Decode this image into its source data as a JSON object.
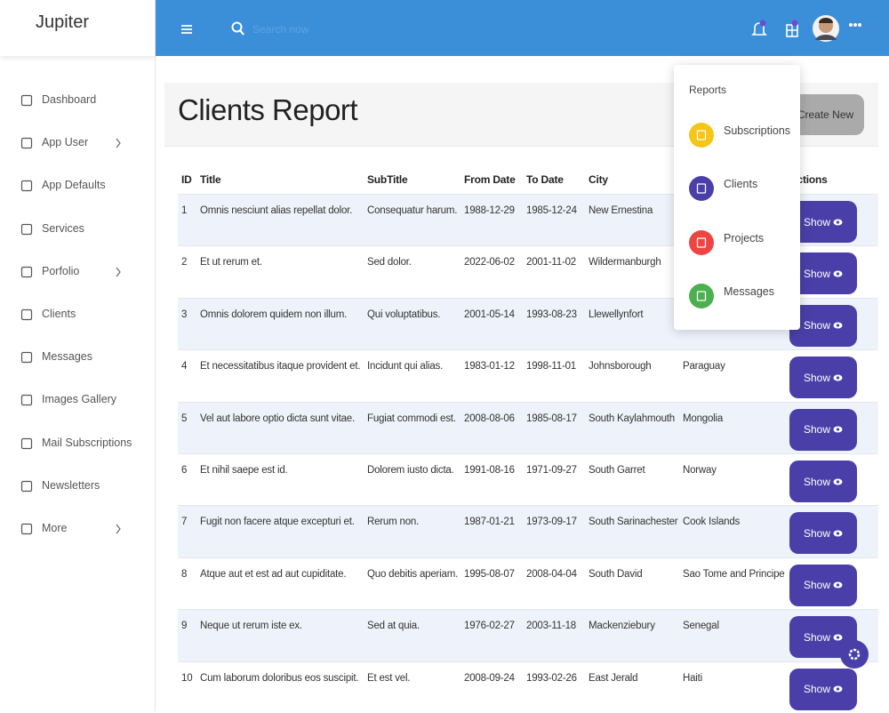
{
  "sidebar": {
    "brand": "Jupiter",
    "menu": [
      {
        "label": "Dashboard",
        "submenu": false
      },
      {
        "label": "App User",
        "submenu": true
      },
      {
        "label": "App Defaults",
        "submenu": false
      },
      {
        "label": "Services",
        "submenu": false
      },
      {
        "label": "Porfolio",
        "submenu": true
      },
      {
        "label": "Clients",
        "submenu": false
      },
      {
        "label": "Messages",
        "submenu": false
      },
      {
        "label": "Images Gallery",
        "submenu": false
      },
      {
        "label": "Mail Subscriptions",
        "submenu": false
      },
      {
        "label": "Newsletters",
        "submenu": false
      },
      {
        "label": "More",
        "submenu": true
      }
    ]
  },
  "topbar": {
    "search_placeholder": "Search now"
  },
  "page": {
    "title": "Clients Report",
    "create_button": "Create New"
  },
  "table": {
    "columns": [
      "ID",
      "Title",
      "SubTitle",
      "From Date",
      "To Date",
      "City",
      "Actions"
    ],
    "action_label": "Show",
    "rows": [
      [
        1,
        "Omnis nesciunt alias repellat dolor.",
        "Consequatur harum.",
        "1988-12-29",
        "1985-12-24",
        "New Ernestina"
      ],
      [
        2,
        "Et ut rerum et.",
        "Sed dolor.",
        "2022-06-02",
        "2001-11-02",
        "Wildermanburgh"
      ],
      [
        3,
        "Omnis dolorem quidem non illum.",
        "Qui voluptatibus.",
        "2001-05-14",
        "1993-08-23",
        "Llewellynfort"
      ],
      [
        4,
        "Et necessitatibus itaque provident et.",
        "Incidunt qui alias.",
        "1983-01-12",
        "1998-11-01",
        "Johnsborough",
        "Paraguay"
      ],
      [
        5,
        "Vel aut labore optio dicta sunt vitae.",
        "Fugiat commodi est.",
        "2008-08-06",
        "1985-08-17",
        "South Kaylahmouth",
        "Mongolia"
      ],
      [
        6,
        "Et nihil saepe est id.",
        "Dolorem iusto dicta.",
        "1991-08-16",
        "1971-09-27",
        "South Garret",
        "Norway"
      ],
      [
        7,
        "Fugit non facere atque excepturi et.",
        "Rerum non.",
        "1987-01-21",
        "1973-09-17",
        "South Sarinachester",
        "Cook Islands"
      ],
      [
        8,
        "Atque aut et est ad aut cupiditate.",
        "Quo debitis aperiam.",
        "1995-08-07",
        "2008-04-04",
        "South David",
        "Sao Tome and Principe"
      ],
      [
        9,
        "Neque ut rerum iste ex.",
        "Sed at quia.",
        "1976-02-27",
        "2003-11-18",
        "Mackenziebury",
        "Senegal"
      ],
      [
        10,
        "Cum laborum doloribus eos suscipit.",
        "Et est vel.",
        "2008-09-24",
        "1993-02-26",
        "East Jerald",
        "Haiti"
      ]
    ]
  },
  "reports_menu": {
    "title": "Reports",
    "items": [
      {
        "label": "Subscriptions",
        "color": "#f5c518"
      },
      {
        "label": "Clients",
        "color": "#4a3fa8"
      },
      {
        "label": "Projects",
        "color": "#ef4444"
      },
      {
        "label": "Messages",
        "color": "#4caf50"
      }
    ]
  }
}
